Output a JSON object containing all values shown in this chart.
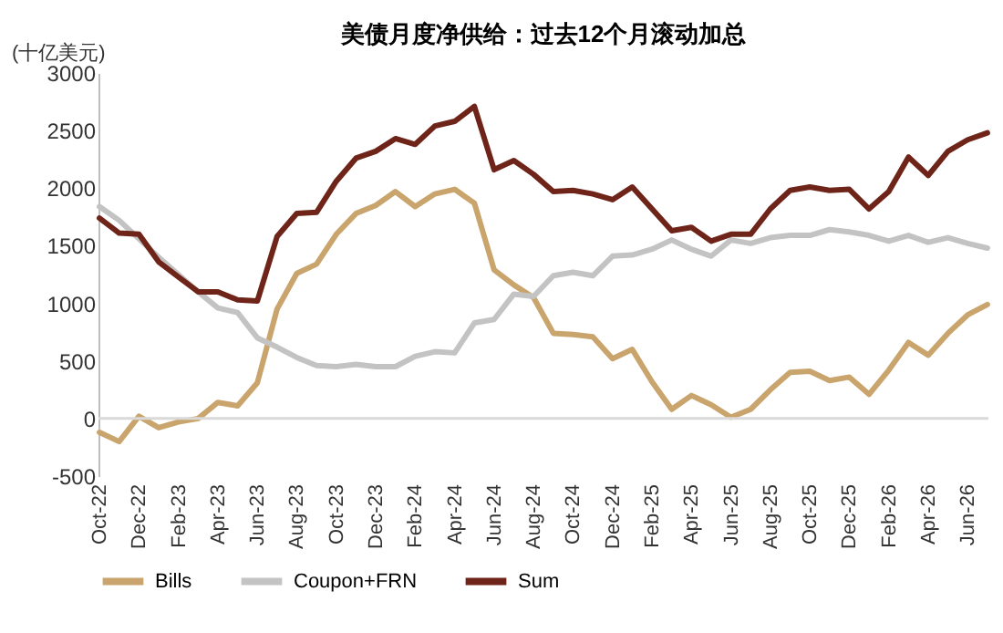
{
  "chart_data": {
    "type": "line",
    "title": "美债月度净供给：过去12个月滚动加总",
    "ylabel": "(十亿美元)",
    "categories": [
      "Oct-22",
      null,
      "Dec-22",
      null,
      "Feb-23",
      null,
      "Apr-23",
      null,
      "Jun-23",
      null,
      "Aug-23",
      null,
      "Oct-23",
      null,
      "Dec-23",
      null,
      "Feb-24",
      null,
      "Apr-24",
      null,
      "Jun-24",
      null,
      "Aug-24",
      null,
      "Oct-24",
      null,
      "Dec-24",
      null,
      "Feb-25",
      null,
      "Apr-25",
      null,
      "Jun-25",
      null,
      "Aug-25",
      null,
      "Oct-25",
      null,
      "Dec-25",
      null,
      "Feb-26",
      null,
      "Apr-26",
      null,
      "Jun-26",
      null
    ],
    "series": [
      {
        "name": "Bills",
        "color": "#c9a46c",
        "values": [
          -120,
          -200,
          20,
          -80,
          -30,
          0,
          140,
          110,
          310,
          950,
          1260,
          1340,
          1600,
          1780,
          1850,
          1970,
          1840,
          1950,
          1990,
          1870,
          1290,
          1160,
          1050,
          740,
          730,
          710,
          520,
          600,
          320,
          80,
          200,
          120,
          10,
          80,
          250,
          400,
          410,
          330,
          360,
          210,
          420,
          660,
          550,
          740,
          900,
          990
        ]
      },
      {
        "name": "Coupon+FRN",
        "color": "#c3c3c3",
        "values": [
          1840,
          1720,
          1560,
          1400,
          1250,
          1100,
          960,
          920,
          700,
          620,
          530,
          460,
          450,
          470,
          450,
          450,
          540,
          580,
          570,
          830,
          860,
          1080,
          1060,
          1240,
          1270,
          1240,
          1410,
          1420,
          1470,
          1550,
          1470,
          1410,
          1550,
          1520,
          1570,
          1590,
          1590,
          1640,
          1620,
          1590,
          1540,
          1590,
          1530,
          1570,
          1520,
          1480
        ]
      },
      {
        "name": "Sum",
        "color": "#6e2418",
        "values": [
          1740,
          1610,
          1600,
          1360,
          1230,
          1100,
          1100,
          1030,
          1020,
          1580,
          1780,
          1790,
          2060,
          2260,
          2320,
          2430,
          2380,
          2540,
          2580,
          2710,
          2160,
          2240,
          2120,
          1970,
          1980,
          1950,
          1900,
          2010,
          1820,
          1630,
          1660,
          1540,
          1600,
          1600,
          1820,
          1980,
          2010,
          1980,
          1990,
          1820,
          1970,
          2270,
          2110,
          2320,
          2420,
          2480
        ]
      }
    ],
    "ylim": [
      -500,
      3000
    ],
    "yticks": [
      -500,
      0,
      500,
      1000,
      1500,
      2000,
      2500,
      3000
    ],
    "ref_lines": [
      {
        "axis": "y",
        "value": 0,
        "color": "#d9d9d9"
      }
    ],
    "legend": "bottom",
    "grid": false,
    "marker": "none",
    "line_style": "solid"
  }
}
